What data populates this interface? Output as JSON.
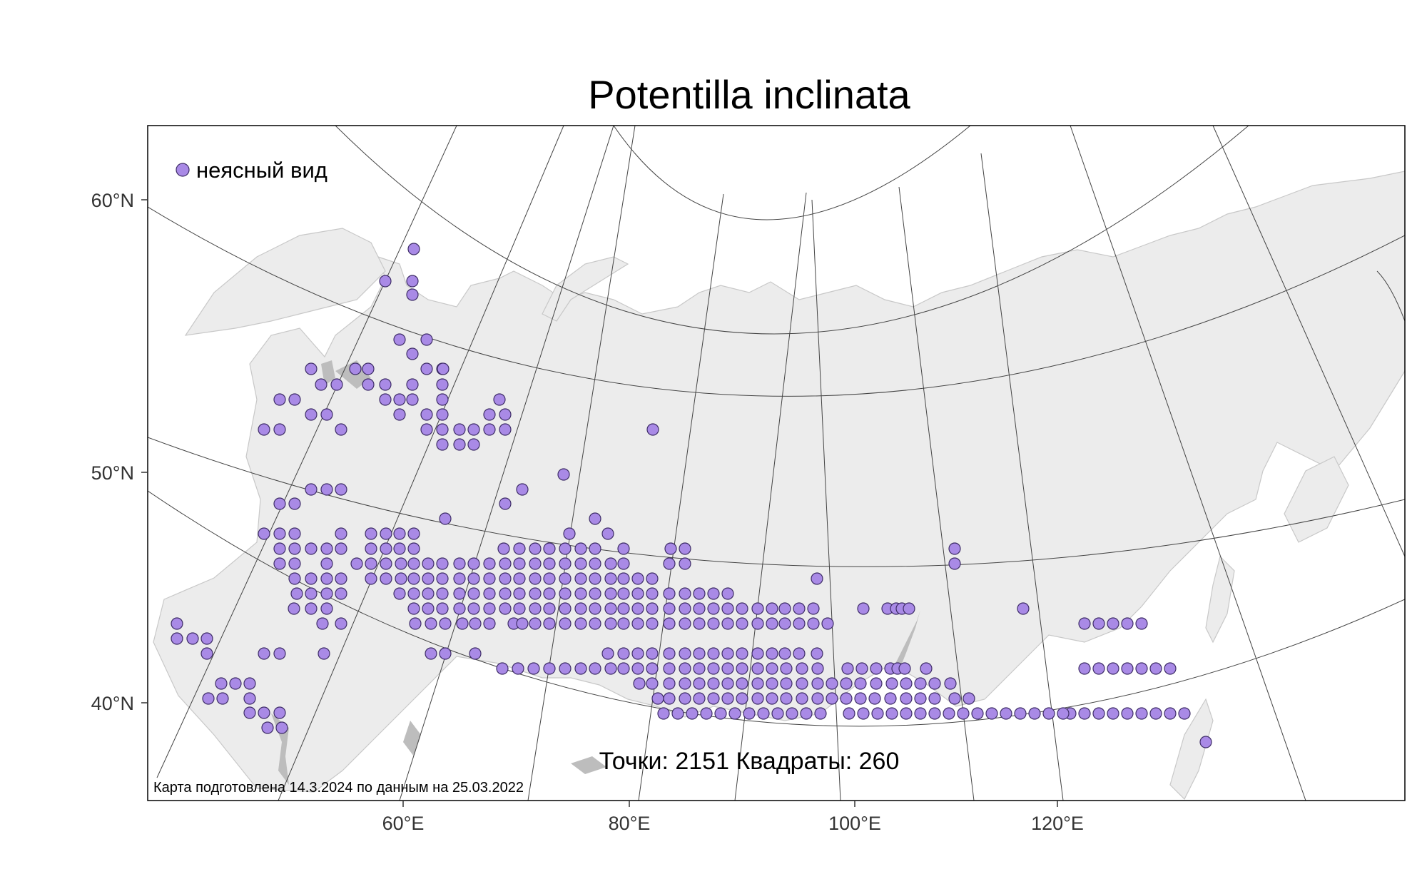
{
  "title": "Potentilla inclinata",
  "legend": {
    "label": "неясный вид",
    "color": "#a98ae6"
  },
  "stats": "Точки: 2151 Квадраты: 260",
  "credit": "Карта подготовлена 14.3.2024 по данным на 25.03.2022",
  "axes": {
    "lat_labels": [
      "60°N",
      "50°N",
      "40°N"
    ],
    "lon_labels": [
      "60°E",
      "80°E",
      "100°E",
      "120°E"
    ]
  }
}
